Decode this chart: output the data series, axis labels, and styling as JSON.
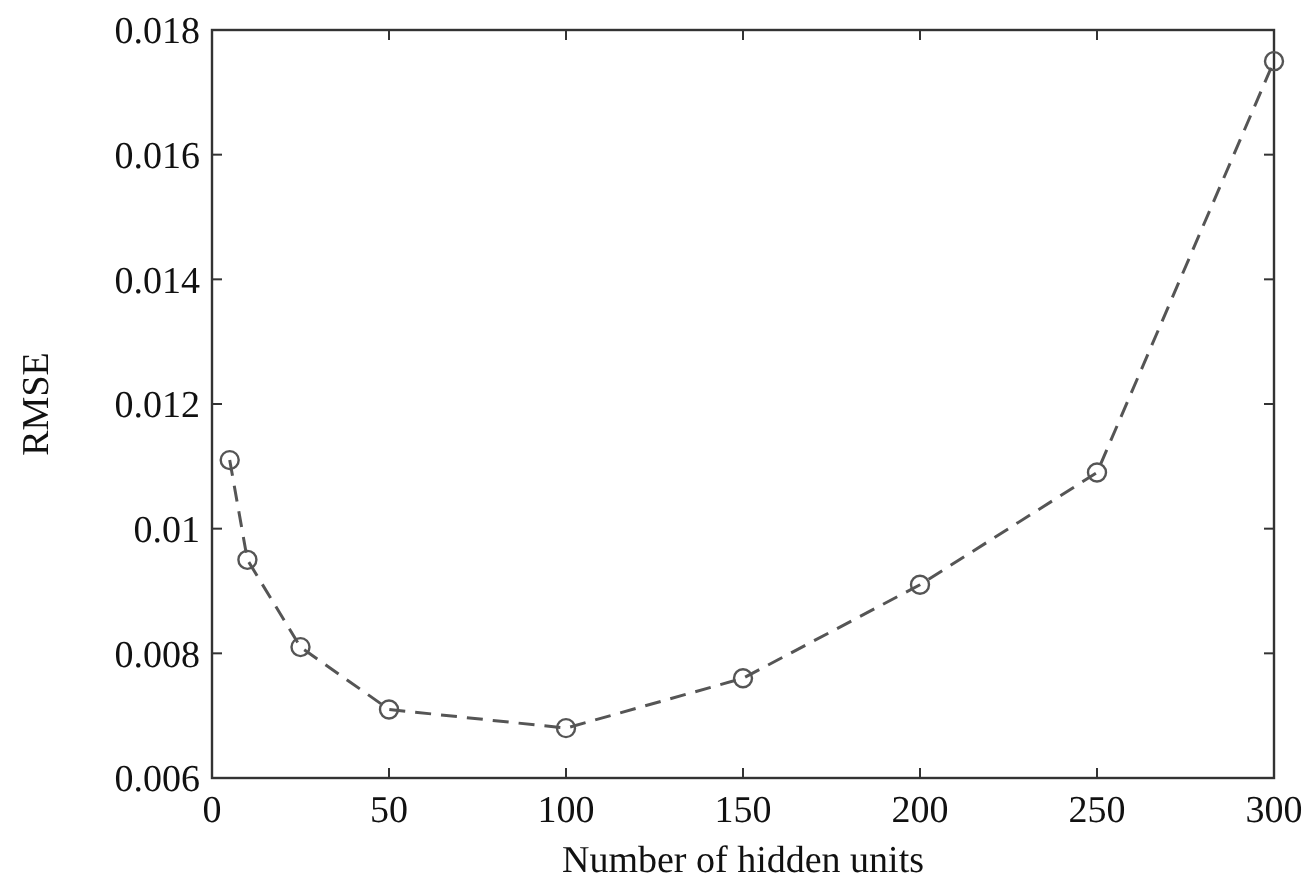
{
  "chart_data": {
    "type": "line",
    "xlabel": "Number of hidden units",
    "ylabel": "RMSE",
    "x": [
      5,
      10,
      25,
      50,
      100,
      150,
      200,
      250,
      300
    ],
    "series": [
      {
        "color": "#555555",
        "values": [
          0.0111,
          0.0095,
          0.0081,
          0.0071,
          0.0068,
          0.0076,
          0.0091,
          0.0109,
          0.0175
        ]
      }
    ],
    "xlim": [
      0,
      300
    ],
    "xticks": [
      0,
      50,
      100,
      150,
      200,
      250,
      300
    ],
    "ylim": [
      0.006,
      0.018
    ],
    "yticks": [
      0.006,
      0.008,
      0.01,
      0.012,
      0.014,
      0.016,
      0.018
    ],
    "marker": "circle",
    "line_style": "dashed"
  }
}
